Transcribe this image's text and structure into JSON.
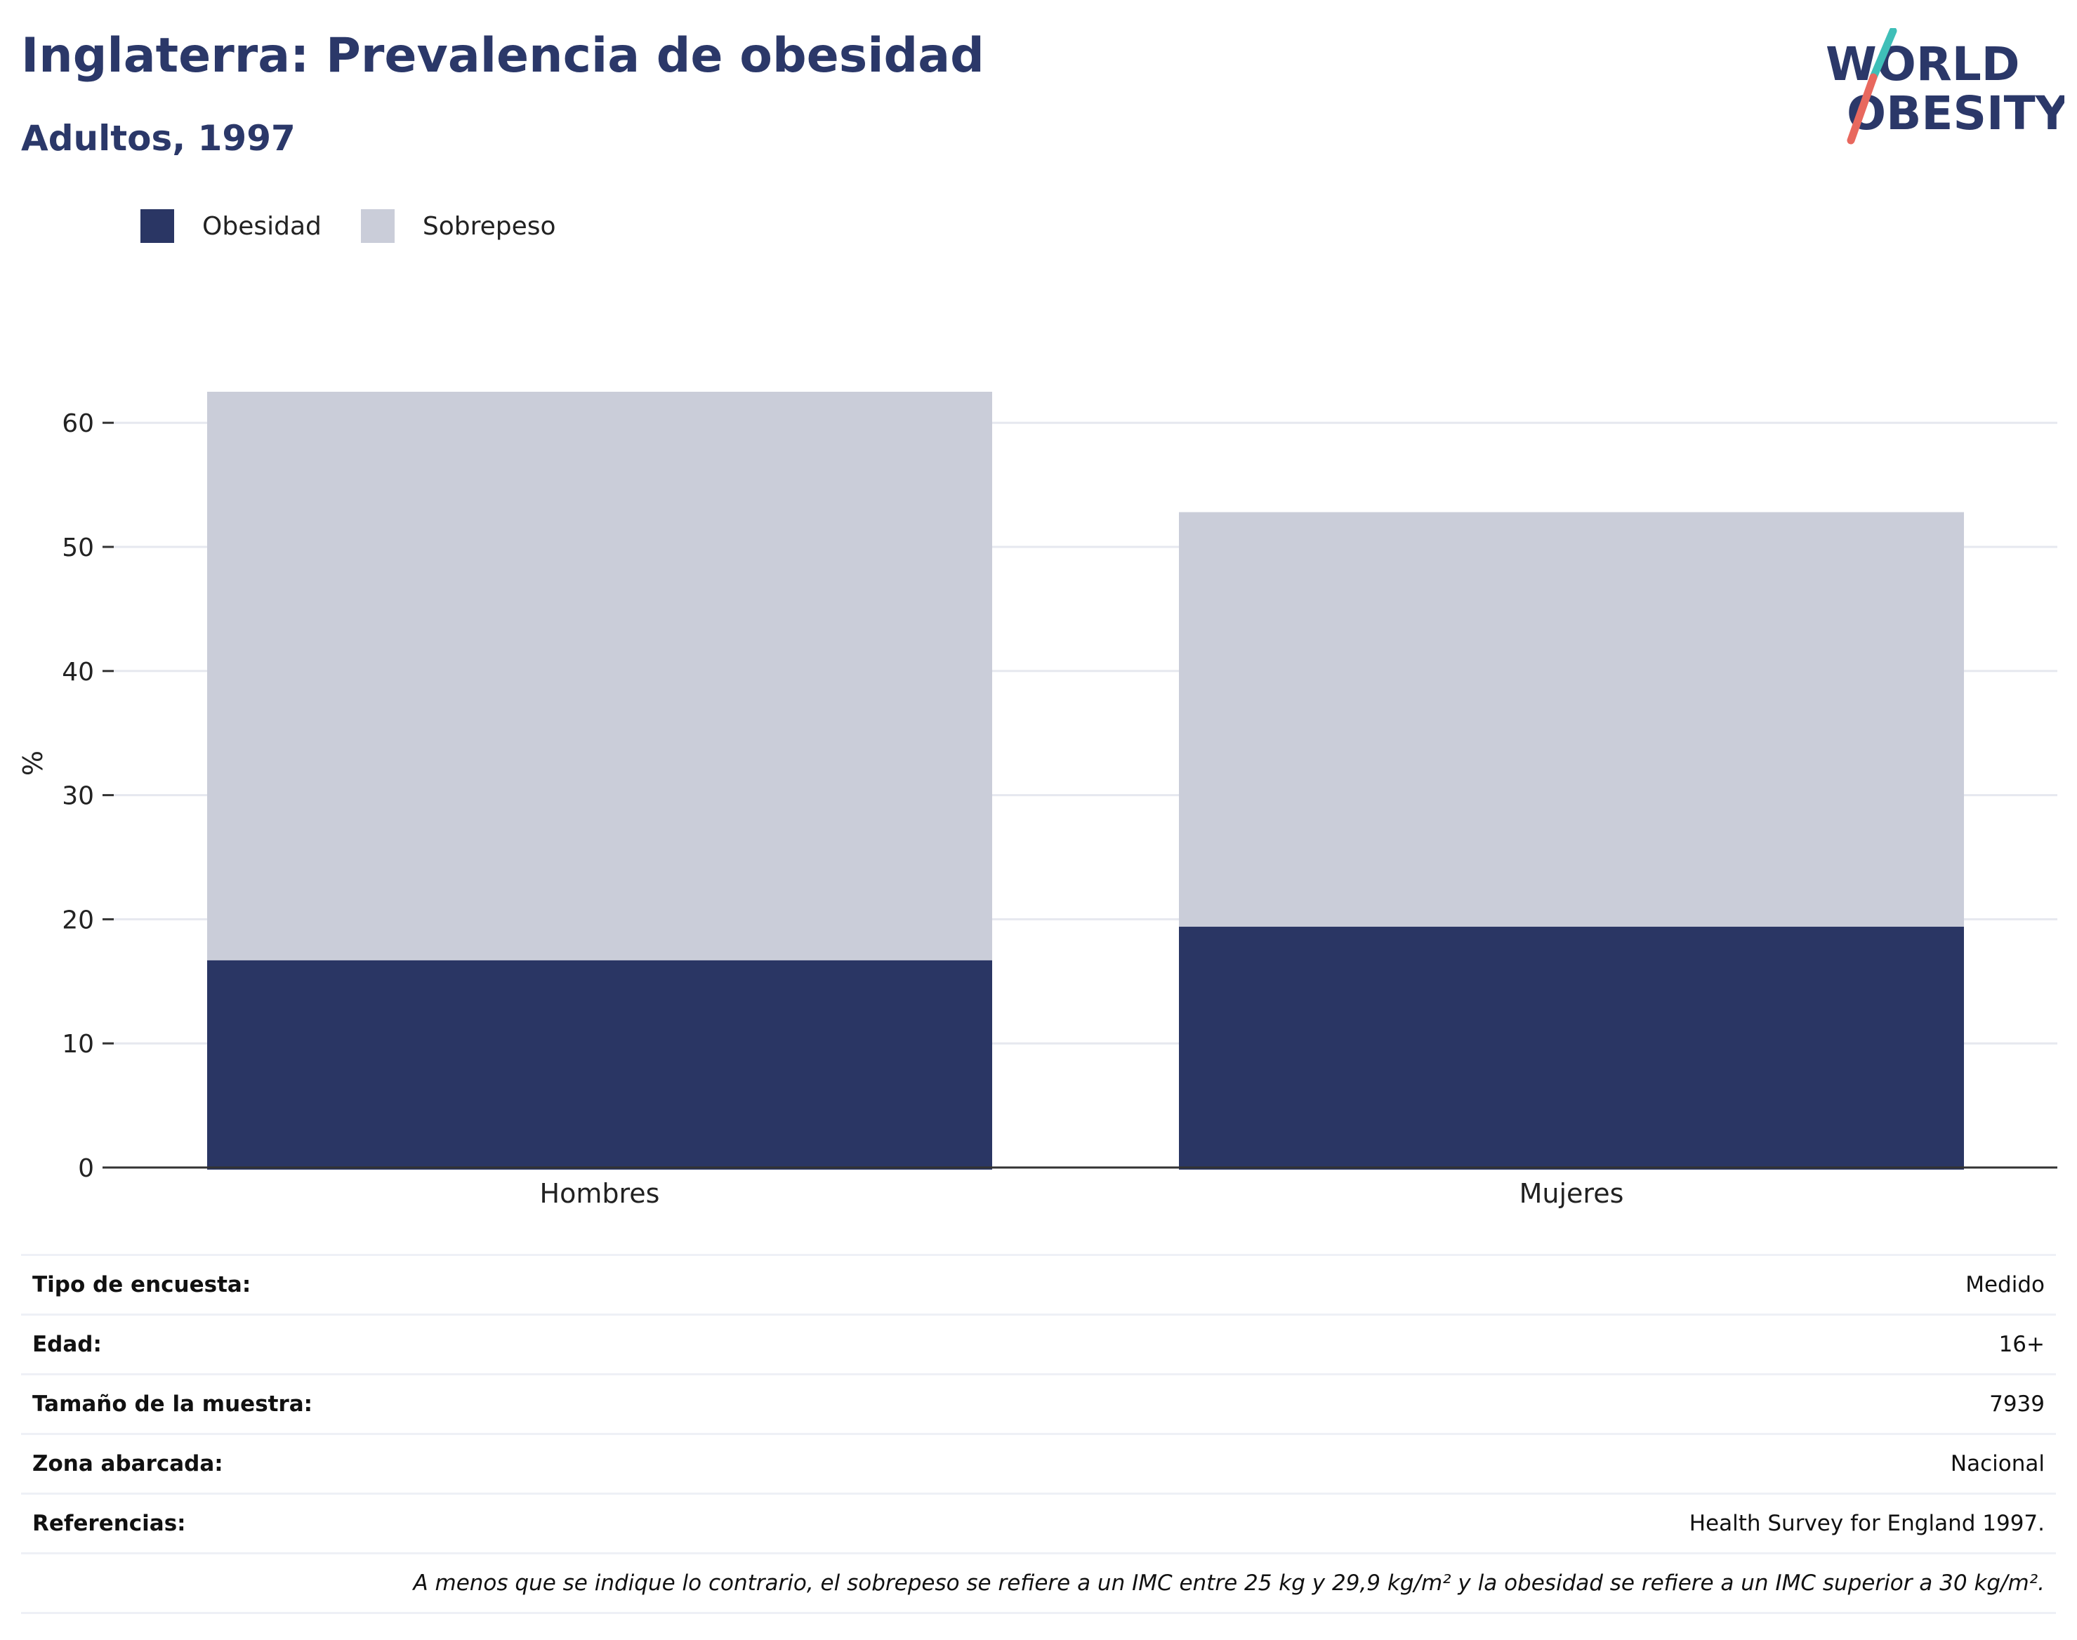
{
  "header": {
    "title": "Inglaterra: Prevalencia de obesidad",
    "subtitle": "Adultos, 1997"
  },
  "logo": {
    "line1": "WORLD",
    "line2": "OBESITY",
    "colors": {
      "text": "#2b3869",
      "slash_top": "#3fbfb8",
      "slash_bottom": "#e8685e"
    }
  },
  "legend": [
    {
      "label": "Obesidad",
      "color": "#2a3664"
    },
    {
      "label": "Sobrepeso",
      "color": "#cacdd9"
    }
  ],
  "chart_data": {
    "type": "bar",
    "stacked": true,
    "categories": [
      "Hombres",
      "Mujeres"
    ],
    "series": [
      {
        "name": "Obesidad",
        "color": "#2a3664",
        "values": [
          16.7,
          19.4
        ]
      },
      {
        "name": "Sobrepeso",
        "color": "#cacdd9",
        "values": [
          45.8,
          33.4
        ]
      }
    ],
    "ylabel": "%",
    "ylim": [
      0,
      66
    ],
    "yticks": [
      0,
      10,
      20,
      30,
      40,
      50,
      60
    ],
    "grid": true,
    "legend_position": "top-left"
  },
  "metadata": [
    {
      "label": "Tipo de encuesta:",
      "value": "Medido"
    },
    {
      "label": "Edad:",
      "value": "16+"
    },
    {
      "label": "Tamaño de la muestra:",
      "value": "7939"
    },
    {
      "label": "Zona abarcada:",
      "value": "Nacional"
    },
    {
      "label": "Referencias:",
      "value": "Health Survey for England 1997."
    }
  ],
  "footnote": "A menos que se indique lo contrario, el sobrepeso se refiere a un IMC entre 25 kg y 29,9 kg/m² y la obesidad se refiere a un IMC superior a 30 kg/m²."
}
